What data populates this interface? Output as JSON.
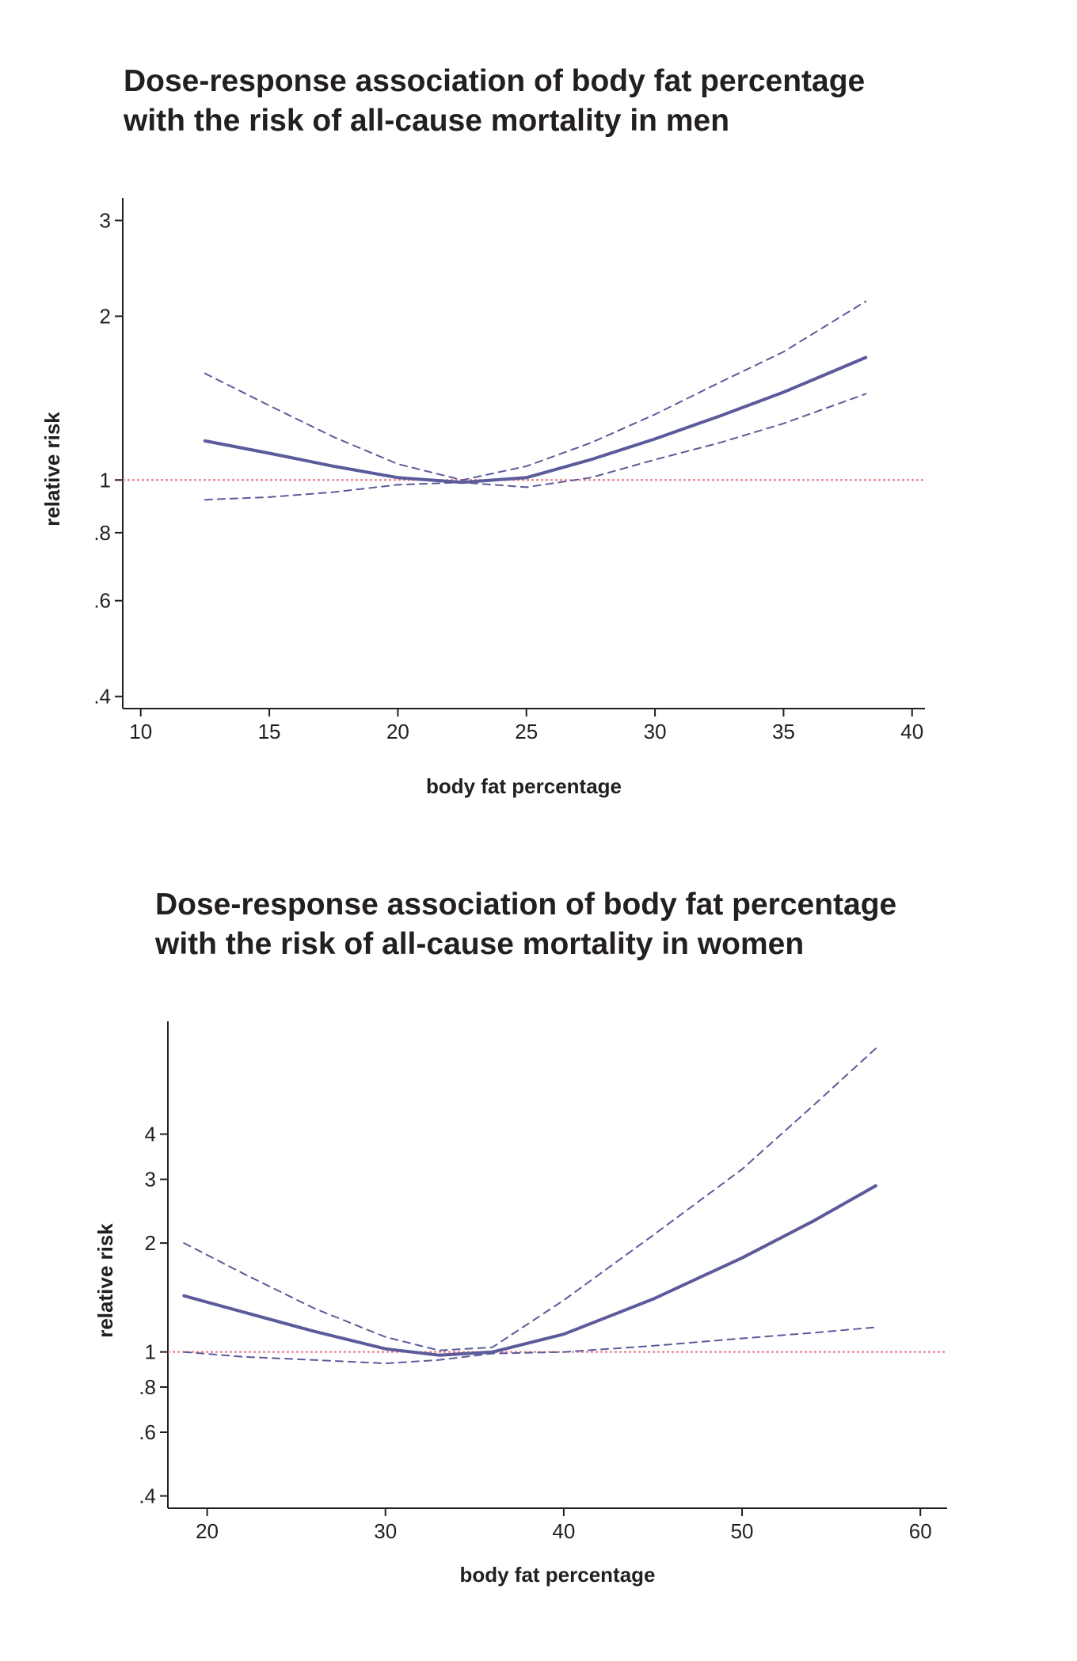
{
  "chart_data": [
    {
      "type": "line",
      "title": [
        "Dose-response association of body fat percentage",
        "with the risk of all-cause mortality in men"
      ],
      "xlabel": "body fat percentage",
      "ylabel": "relative risk",
      "xlim": [
        9.3,
        40.5
      ],
      "ylim": [
        0.38,
        3.3
      ],
      "yscale": "log",
      "xticks": [
        10,
        15,
        20,
        25,
        30,
        35,
        40
      ],
      "yticks": [
        {
          "value": 0.4,
          "label": ".4"
        },
        {
          "value": 0.6,
          "label": ".6"
        },
        {
          "value": 0.8,
          "label": ".8"
        },
        {
          "value": 1,
          "label": "1"
        },
        {
          "value": 2,
          "label": "2"
        },
        {
          "value": 3,
          "label": "3"
        }
      ],
      "reference_line": {
        "y": 1,
        "color": "#e8747c"
      },
      "series": [
        {
          "role": "estimate",
          "style": "solid",
          "color": "#5b5b9b",
          "x": [
            12.5,
            15,
            17.5,
            20,
            22.5,
            25,
            27.5,
            30,
            32.5,
            35,
            38.2
          ],
          "y": [
            1.18,
            1.12,
            1.06,
            1.01,
            0.99,
            1.01,
            1.09,
            1.19,
            1.31,
            1.45,
            1.68
          ]
        },
        {
          "role": "upper",
          "style": "dashed",
          "color": "#5b5b9b",
          "x": [
            12.5,
            15,
            17.5,
            20,
            22.5,
            25,
            27.5,
            30,
            32.5,
            35,
            38.2
          ],
          "y": [
            1.57,
            1.37,
            1.2,
            1.07,
            1.0,
            1.06,
            1.17,
            1.32,
            1.51,
            1.72,
            2.13
          ]
        },
        {
          "role": "lower",
          "style": "dashed",
          "color": "#5b5b9b",
          "x": [
            12.5,
            15,
            17.5,
            20,
            22.5,
            25,
            27.5,
            30,
            32.5,
            35,
            38.2
          ],
          "y": [
            0.92,
            0.93,
            0.95,
            0.98,
            0.99,
            0.97,
            1.01,
            1.09,
            1.17,
            1.27,
            1.44
          ]
        }
      ]
    },
    {
      "type": "line",
      "title": [
        "Dose-response association of body fat percentage",
        "with the risk of all-cause mortality in women"
      ],
      "xlabel": "body fat percentage",
      "ylabel": "relative risk",
      "xlim": [
        17.8,
        61.5
      ],
      "ylim": [
        0.37,
        8.2
      ],
      "yscale": "log",
      "xticks": [
        20,
        30,
        40,
        50,
        60
      ],
      "yticks": [
        {
          "value": 0.4,
          "label": ".4"
        },
        {
          "value": 0.6,
          "label": ".6"
        },
        {
          "value": 0.8,
          "label": ".8"
        },
        {
          "value": 1,
          "label": "1"
        },
        {
          "value": 2,
          "label": "2"
        },
        {
          "value": 3,
          "label": "3"
        },
        {
          "value": 4,
          "label": "4"
        }
      ],
      "reference_line": {
        "y": 1,
        "color": "#e8747c"
      },
      "series": [
        {
          "role": "estimate",
          "style": "solid",
          "color": "#5b5b9b",
          "x": [
            18.7,
            22,
            26,
            30,
            33,
            36,
            40,
            45,
            50,
            54,
            57.5
          ],
          "y": [
            1.43,
            1.29,
            1.14,
            1.02,
            0.98,
            1.0,
            1.12,
            1.4,
            1.82,
            2.3,
            2.88
          ]
        },
        {
          "role": "upper",
          "style": "dashed",
          "color": "#5b5b9b",
          "x": [
            18.7,
            22,
            26,
            30,
            33,
            36,
            40,
            45,
            50,
            54,
            57.5
          ],
          "y": [
            2.0,
            1.65,
            1.32,
            1.1,
            1.01,
            1.03,
            1.39,
            2.1,
            3.2,
            4.8,
            6.9
          ]
        },
        {
          "role": "lower",
          "style": "dashed",
          "color": "#5b5b9b",
          "x": [
            18.7,
            22,
            26,
            30,
            33,
            36,
            40,
            45,
            50,
            54,
            57.5
          ],
          "y": [
            1.0,
            0.97,
            0.95,
            0.93,
            0.95,
            0.99,
            1.0,
            1.04,
            1.09,
            1.13,
            1.17
          ]
        }
      ]
    }
  ]
}
